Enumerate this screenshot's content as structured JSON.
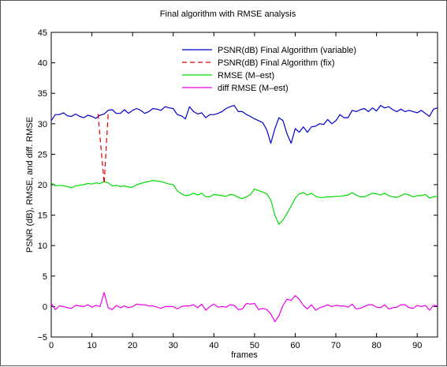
{
  "chart_data": {
    "type": "line",
    "title": "Final algorithm with RMSE analysis",
    "xlabel": "frames",
    "ylabel": "PSNR (dB), RMSE, and diff. RMSE",
    "xlim": [
      0,
      95
    ],
    "ylim": [
      -5,
      45
    ],
    "xticks": [
      0,
      10,
      20,
      30,
      40,
      50,
      60,
      70,
      80,
      90
    ],
    "yticks": [
      -5,
      0,
      5,
      10,
      15,
      20,
      25,
      30,
      35,
      40,
      45
    ],
    "grid": false,
    "legend_position": "top-right",
    "series": [
      {
        "name": "PSNR(dB) Final Algorithm (variable)",
        "color": "#0000cc",
        "dash": "solid",
        "x": [
          0,
          1,
          2,
          3,
          4,
          5,
          6,
          7,
          8,
          9,
          10,
          11,
          12,
          13,
          14,
          15,
          16,
          17,
          18,
          19,
          20,
          21,
          22,
          23,
          24,
          25,
          26,
          27,
          28,
          29,
          30,
          31,
          32,
          33,
          34,
          35,
          36,
          37,
          38,
          39,
          40,
          41,
          42,
          43,
          44,
          45,
          46,
          47,
          48,
          49,
          50,
          51,
          52,
          53,
          54,
          55,
          56,
          57,
          58,
          59,
          60,
          61,
          62,
          63,
          64,
          65,
          66,
          67,
          68,
          69,
          70,
          71,
          72,
          73,
          74,
          75,
          76,
          77,
          78,
          79,
          80,
          81,
          82,
          83,
          84,
          85,
          86,
          87,
          88,
          89,
          90,
          91,
          92,
          93,
          94,
          95
        ],
        "values": [
          30.5,
          31.5,
          31.5,
          31.8,
          31.3,
          31.2,
          31.6,
          31.2,
          31.0,
          31.4,
          31.2,
          30.9,
          31.4,
          31.6,
          32.2,
          32.3,
          31.7,
          31.7,
          32.3,
          31.7,
          32.2,
          32.5,
          32.2,
          31.7,
          32.0,
          32.5,
          32.4,
          32.2,
          32.8,
          32.6,
          32.5,
          31.5,
          31.3,
          30.8,
          32.8,
          32.0,
          31.6,
          31.8,
          31.0,
          31.5,
          31.5,
          31.7,
          32.0,
          32.5,
          32.8,
          33.0,
          32.0,
          32.0,
          31.5,
          31.2,
          30.8,
          30.5,
          30.2,
          29.0,
          26.8,
          29.2,
          31.0,
          30.5,
          28.3,
          26.8,
          29.2,
          28.6,
          29.5,
          28.6,
          29.5,
          29.6,
          30.0,
          29.9,
          30.7,
          30.0,
          30.5,
          31.5,
          31.0,
          31.0,
          32.2,
          32.0,
          32.3,
          32.5,
          32.0,
          32.6,
          32.1,
          33.0,
          32.6,
          32.8,
          32.3,
          32.0,
          32.4,
          32.0,
          32.2,
          32.0,
          31.8,
          32.2,
          31.7,
          31.2,
          32.4,
          32.6
        ]
      },
      {
        "name": "PSNR(dB) Final Algorithm (fix)",
        "color": "#dd0000",
        "dash": "dashed",
        "x": [
          11.5,
          13.0,
          14.0
        ],
        "values": [
          31.6,
          20.2,
          31.6
        ]
      },
      {
        "name": "RMSE (M–est)",
        "color": "#00dd00",
        "dash": "solid",
        "x": [
          0,
          1,
          2,
          3,
          4,
          5,
          6,
          7,
          8,
          9,
          10,
          11,
          12,
          13,
          14,
          15,
          16,
          17,
          18,
          19,
          20,
          21,
          22,
          23,
          24,
          25,
          26,
          27,
          28,
          29,
          30,
          31,
          32,
          33,
          34,
          35,
          36,
          37,
          38,
          39,
          40,
          41,
          42,
          43,
          44,
          45,
          46,
          47,
          48,
          49,
          50,
          51,
          52,
          53,
          54,
          55,
          56,
          57,
          58,
          59,
          60,
          61,
          62,
          63,
          64,
          65,
          66,
          67,
          68,
          69,
          70,
          71,
          72,
          73,
          74,
          75,
          76,
          77,
          78,
          79,
          80,
          81,
          82,
          83,
          84,
          85,
          86,
          87,
          88,
          89,
          90,
          91,
          92,
          93,
          94,
          95
        ],
        "values": [
          20.3,
          19.8,
          19.9,
          19.8,
          19.7,
          19.5,
          19.8,
          19.9,
          20.0,
          20.2,
          20.1,
          20.3,
          20.2,
          20.5,
          20.3,
          19.8,
          19.9,
          19.7,
          19.8,
          19.6,
          19.6,
          20.0,
          20.2,
          20.4,
          20.5,
          20.7,
          20.6,
          20.5,
          20.3,
          20.1,
          20.0,
          19.0,
          18.5,
          18.2,
          18.3,
          18.6,
          18.3,
          18.6,
          18.0,
          18.0,
          18.4,
          18.3,
          18.2,
          18.1,
          18.4,
          18.3,
          17.9,
          17.7,
          18.0,
          18.4,
          19.3,
          19.0,
          18.8,
          18.5,
          17.5,
          15.0,
          13.5,
          14.2,
          15.3,
          16.5,
          17.8,
          18.5,
          18.7,
          18.3,
          18.6,
          18.1,
          17.9,
          17.9,
          18.0,
          18.0,
          18.1,
          18.1,
          18.2,
          18.3,
          18.7,
          18.3,
          18.0,
          18.0,
          18.3,
          18.6,
          18.5,
          18.3,
          18.6,
          18.2,
          18.0,
          17.9,
          18.2,
          18.5,
          18.3,
          18.0,
          18.2,
          18.2,
          18.4,
          17.8,
          18.0,
          18.1
        ]
      },
      {
        "name": "diff RMSE (M–est)",
        "color": "#ee00ee",
        "dash": "solid",
        "x": [
          0,
          1,
          2,
          3,
          4,
          5,
          6,
          7,
          8,
          9,
          10,
          11,
          12,
          13,
          14,
          15,
          16,
          17,
          18,
          19,
          20,
          21,
          22,
          23,
          24,
          25,
          26,
          27,
          28,
          29,
          30,
          31,
          32,
          33,
          34,
          35,
          36,
          37,
          38,
          39,
          40,
          41,
          42,
          43,
          44,
          45,
          46,
          47,
          48,
          49,
          50,
          51,
          52,
          53,
          54,
          55,
          56,
          57,
          58,
          59,
          60,
          61,
          62,
          63,
          64,
          65,
          66,
          67,
          68,
          69,
          70,
          71,
          72,
          73,
          74,
          75,
          76,
          77,
          78,
          79,
          80,
          81,
          82,
          83,
          84,
          85,
          86,
          87,
          88,
          89,
          90,
          91,
          92,
          93,
          94,
          95
        ],
        "values": [
          0.5,
          -0.5,
          0.1,
          0.0,
          -0.2,
          -0.3,
          0.2,
          0.1,
          0.0,
          0.3,
          -0.1,
          0.2,
          0.0,
          2.3,
          -0.2,
          -0.5,
          0.2,
          -0.2,
          0.1,
          -0.2,
          0.0,
          0.4,
          0.3,
          0.3,
          0.1,
          0.1,
          -0.1,
          -0.3,
          0.0,
          0.0,
          0.0,
          -0.4,
          0.0,
          0.1,
          0.1,
          0.3,
          -0.2,
          0.4,
          -0.6,
          0.0,
          0.4,
          -0.1,
          0.0,
          -0.1,
          0.3,
          0.2,
          -0.5,
          -0.4,
          0.5,
          0.4,
          0.5,
          -0.5,
          -0.3,
          -0.5,
          -1.2,
          -2.5,
          -1.5,
          0.2,
          1.2,
          1.0,
          1.8,
          1.2,
          0.2,
          -0.4,
          0.3,
          -0.6,
          -0.2,
          0.0,
          0.3,
          0.0,
          0.2,
          0.1,
          0.1,
          -0.1,
          0.4,
          -0.4,
          -0.3,
          0.0,
          0.3,
          0.3,
          -0.1,
          -0.2,
          0.3,
          -0.4,
          -0.2,
          -0.1,
          0.3,
          0.3,
          -0.2,
          -0.3,
          0.2,
          0.0,
          0.2,
          -0.6,
          0.2,
          0.1
        ]
      }
    ]
  }
}
